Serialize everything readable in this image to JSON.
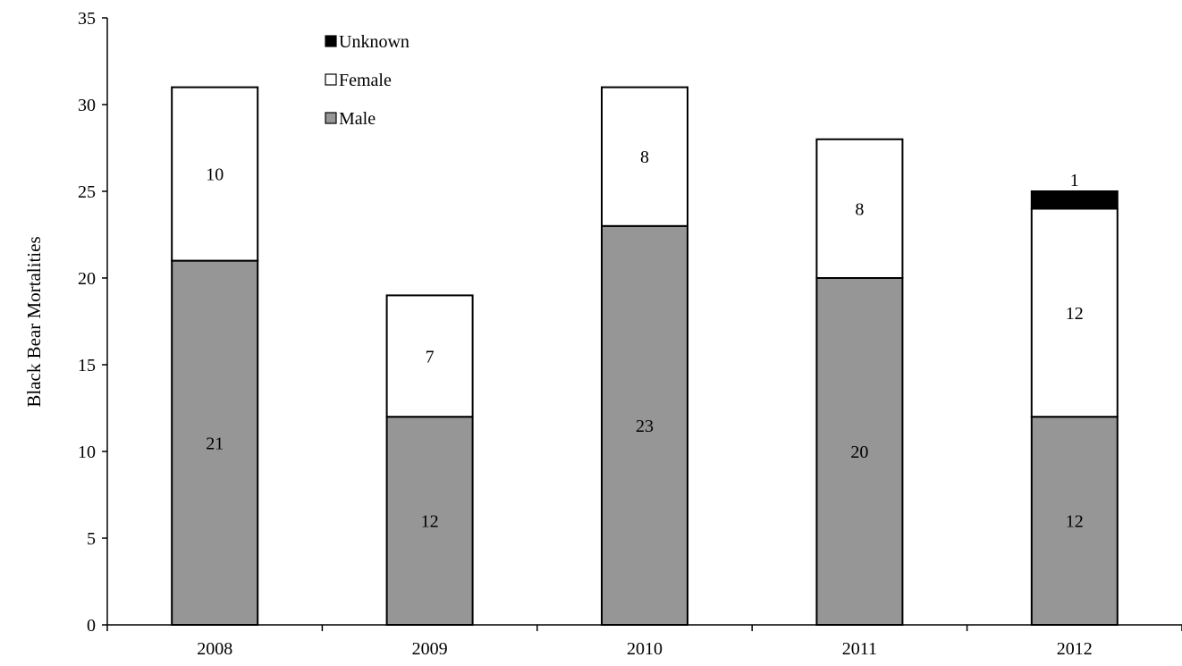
{
  "chart_data": {
    "type": "bar",
    "stacked": true,
    "categories": [
      "2008",
      "2009",
      "2010",
      "2011",
      "2012"
    ],
    "series": [
      {
        "name": "Male",
        "values": [
          21,
          12,
          23,
          20,
          12
        ],
        "color": "#969696",
        "labels": [
          "21",
          "12",
          "23",
          "20",
          "12"
        ]
      },
      {
        "name": "Female",
        "values": [
          10,
          7,
          8,
          8,
          12
        ],
        "color": "#ffffff",
        "labels": [
          "10",
          "7",
          "8",
          "8",
          "12"
        ]
      },
      {
        "name": "Unknown",
        "values": [
          0,
          0,
          0,
          0,
          1
        ],
        "color": "#000000",
        "labels": [
          "",
          "",
          "",
          "",
          "1"
        ]
      }
    ],
    "legend_order": [
      "Unknown",
      "Female",
      "Male"
    ],
    "legend_position": "top-left",
    "title": "",
    "xlabel": "",
    "ylabel": "Black Bear Mortalities",
    "ylim": [
      0,
      35
    ],
    "yticks": [
      0,
      5,
      10,
      15,
      20,
      25,
      30,
      35
    ],
    "grid": false
  }
}
